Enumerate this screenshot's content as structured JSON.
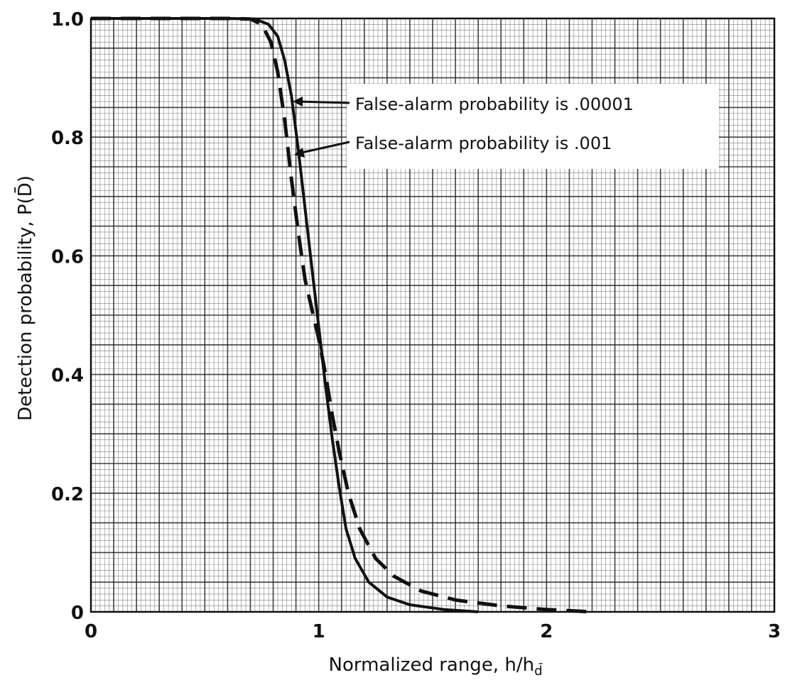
{
  "chart_data": {
    "type": "line",
    "title": "",
    "xlabel": "Normalized range, h/h",
    "xlabel_subscript": "d̄",
    "ylabel": "Detection probability,  P(D̄)",
    "xlim": [
      0,
      3
    ],
    "ylim": [
      0,
      1.0
    ],
    "x_ticks": [
      0,
      1,
      2,
      3
    ],
    "x_tick_labels": [
      "0",
      "1",
      "2",
      "3"
    ],
    "y_ticks": [
      0,
      0.2,
      0.4,
      0.6,
      0.8,
      1.0
    ],
    "y_tick_labels": [
      "0",
      "0.2",
      "0.4",
      "0.6",
      "0.8",
      "1.0"
    ],
    "grid": true,
    "legend_position": "top-right",
    "series": [
      {
        "name": "False-alarm probability is .00001",
        "style": "solid",
        "color": "#111111",
        "points": [
          [
            0,
            1.0
          ],
          [
            0.6,
            1.0
          ],
          [
            0.72,
            0.999
          ],
          [
            0.78,
            0.99
          ],
          [
            0.82,
            0.97
          ],
          [
            0.85,
            0.93
          ],
          [
            0.88,
            0.87
          ],
          [
            0.91,
            0.78
          ],
          [
            0.94,
            0.68
          ],
          [
            0.97,
            0.58
          ],
          [
            1.0,
            0.48
          ],
          [
            1.03,
            0.38
          ],
          [
            1.06,
            0.29
          ],
          [
            1.09,
            0.21
          ],
          [
            1.12,
            0.14
          ],
          [
            1.16,
            0.09
          ],
          [
            1.22,
            0.05
          ],
          [
            1.3,
            0.025
          ],
          [
            1.4,
            0.012
          ],
          [
            1.55,
            0.004
          ],
          [
            1.7,
            0.0
          ]
        ]
      },
      {
        "name": "False-alarm probability is .001",
        "style": "dashed",
        "color": "#111111",
        "points": [
          [
            0,
            1.0
          ],
          [
            0.6,
            1.0
          ],
          [
            0.7,
            0.999
          ],
          [
            0.75,
            0.99
          ],
          [
            0.79,
            0.96
          ],
          [
            0.82,
            0.91
          ],
          [
            0.85,
            0.83
          ],
          [
            0.88,
            0.73
          ],
          [
            0.91,
            0.64
          ],
          [
            0.94,
            0.56
          ],
          [
            0.97,
            0.51
          ],
          [
            1.0,
            0.46
          ],
          [
            1.03,
            0.4
          ],
          [
            1.06,
            0.33
          ],
          [
            1.09,
            0.27
          ],
          [
            1.13,
            0.2
          ],
          [
            1.18,
            0.14
          ],
          [
            1.25,
            0.09
          ],
          [
            1.33,
            0.06
          ],
          [
            1.45,
            0.035
          ],
          [
            1.6,
            0.02
          ],
          [
            1.8,
            0.01
          ],
          [
            2.0,
            0.004
          ],
          [
            2.2,
            0.0
          ]
        ]
      }
    ],
    "annotations": [
      {
        "text": "False-alarm probability is .00001",
        "arrow_to": [
          0.9,
          0.86
        ]
      },
      {
        "text": "False-alarm probability is .001",
        "arrow_to": [
          0.89,
          0.77
        ]
      }
    ]
  }
}
